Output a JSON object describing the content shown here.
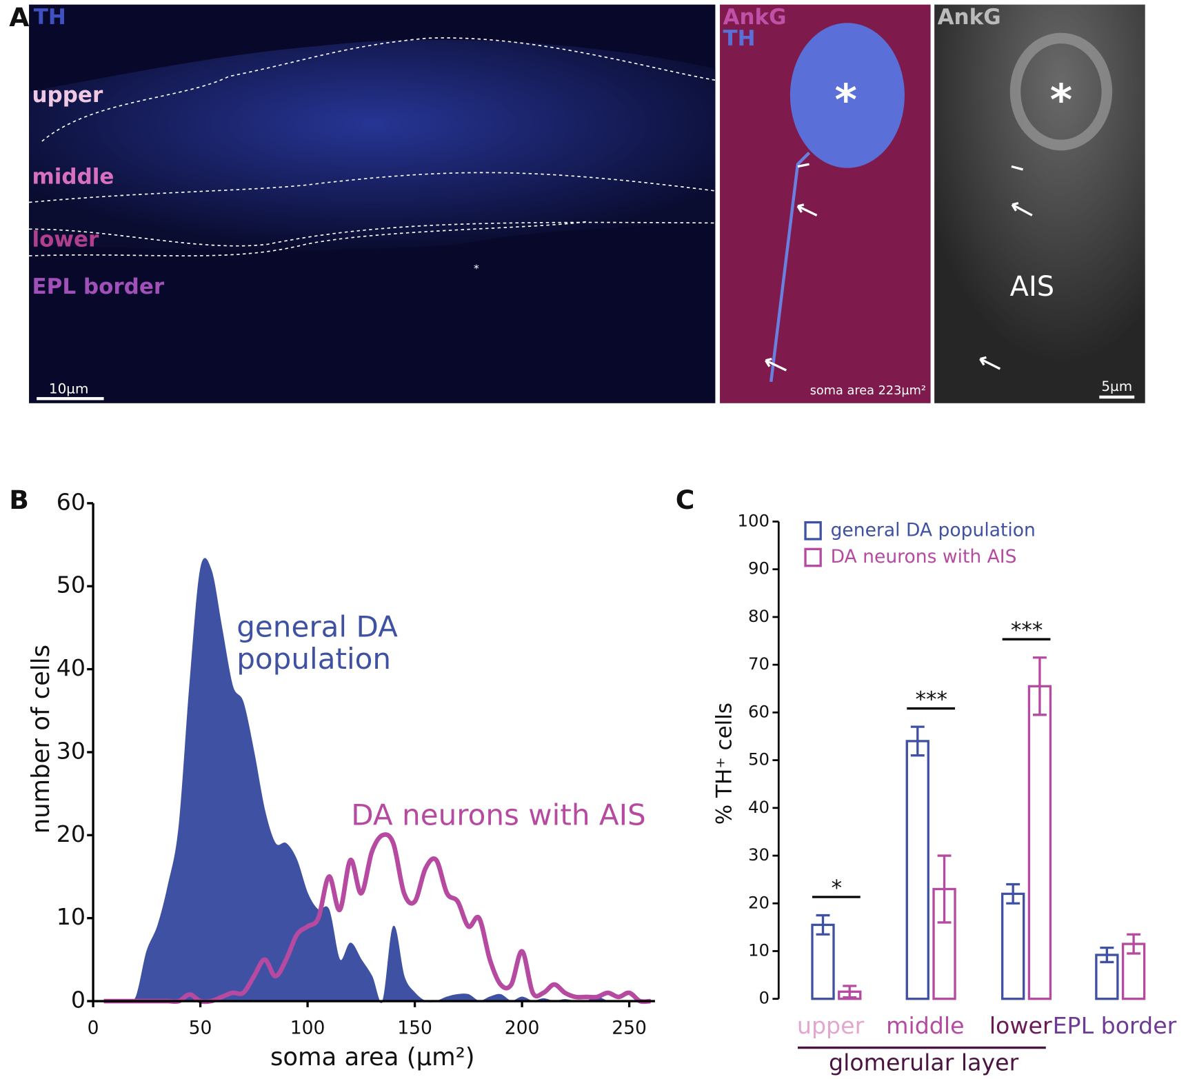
{
  "panel_labels": [
    "A",
    "B",
    "C"
  ],
  "panel_a": {
    "overview": {
      "stain": "TH",
      "layers": [
        "upper",
        "middle",
        "lower",
        "EPL border"
      ],
      "marker": "*",
      "scale_bar": "10µm"
    },
    "merge": {
      "stains": [
        "AnkG",
        "TH"
      ],
      "marker": "*",
      "soma_area": "soma area 223µm²"
    },
    "ankg": {
      "stain": "AnkG",
      "marker": "*",
      "ais": "AIS",
      "scale_bar": "5µm"
    }
  },
  "chart_data": [
    {
      "type": "area",
      "x_label": "soma area (µm²)",
      "y_label": "number of cells",
      "x": [
        5,
        10,
        15,
        20,
        25,
        30,
        35,
        40,
        45,
        50,
        55,
        60,
        65,
        70,
        75,
        80,
        85,
        90,
        95,
        100,
        105,
        110,
        115,
        120,
        125,
        130,
        135,
        140,
        145,
        150,
        155,
        160,
        165,
        170,
        175,
        180,
        185,
        190,
        195,
        200,
        205,
        210,
        215,
        220,
        225,
        230,
        235,
        240,
        245,
        250,
        255,
        260
      ],
      "xlim": [
        0,
        262
      ],
      "xticks": [
        0,
        50,
        100,
        150,
        200,
        250
      ],
      "ylim": [
        0,
        60
      ],
      "yticks": [
        0,
        10,
        20,
        30,
        40,
        50,
        60
      ],
      "series": [
        {
          "name": "general DA population",
          "color": "#3f51a3",
          "fill": true,
          "values": [
            0,
            0,
            0,
            0.5,
            6,
            9,
            14,
            21,
            38,
            52,
            52,
            45,
            38,
            36,
            30,
            23,
            19,
            19,
            17,
            13,
            11,
            11,
            5,
            7,
            5,
            3,
            0,
            9,
            3,
            1,
            0,
            0,
            0.5,
            0.8,
            0.8,
            0,
            0.5,
            0.8,
            0,
            0.5,
            0,
            0.3,
            0,
            0.2,
            0,
            0,
            0.5,
            0,
            0,
            0,
            0,
            0
          ]
        },
        {
          "name": "DA neurons with AIS",
          "color": "#b54aa0",
          "fill": false,
          "values": [
            0,
            0,
            0,
            0,
            0,
            0,
            0,
            0,
            0.8,
            0,
            0,
            0.5,
            1,
            1,
            3,
            5,
            3,
            5,
            8,
            9,
            10,
            15,
            11,
            17,
            13,
            18,
            20,
            19,
            13,
            12,
            16,
            17,
            13,
            12,
            9,
            10,
            5,
            2,
            2,
            6,
            1,
            1,
            2,
            1,
            0.5,
            0.5,
            0.5,
            1,
            0.5,
            1,
            0,
            0
          ]
        }
      ]
    },
    {
      "type": "bar",
      "y_label": "% TH⁺ cells",
      "categories": [
        "upper",
        "middle",
        "lower",
        "EPL border"
      ],
      "category_colors": [
        "#e3a6cf",
        "#b54aa0",
        "#6a1b55",
        "#6d3a96"
      ],
      "group_label": "glomerular layer",
      "significance": [
        "*",
        "***",
        "***",
        null
      ],
      "ylim": [
        0,
        100
      ],
      "yticks": [
        0,
        10,
        20,
        30,
        40,
        50,
        60,
        70,
        80,
        90,
        100
      ],
      "series": [
        {
          "name": "general DA population",
          "color": "#3f51a3",
          "values": [
            15.5,
            54,
            22,
            9.2
          ],
          "errors": [
            2,
            3,
            2,
            1.5
          ]
        },
        {
          "name": "DA neurons with AIS",
          "color": "#b54aa0",
          "values": [
            1.5,
            23,
            65.5,
            11.5
          ],
          "errors": [
            1.2,
            7,
            6,
            2
          ]
        }
      ]
    }
  ]
}
